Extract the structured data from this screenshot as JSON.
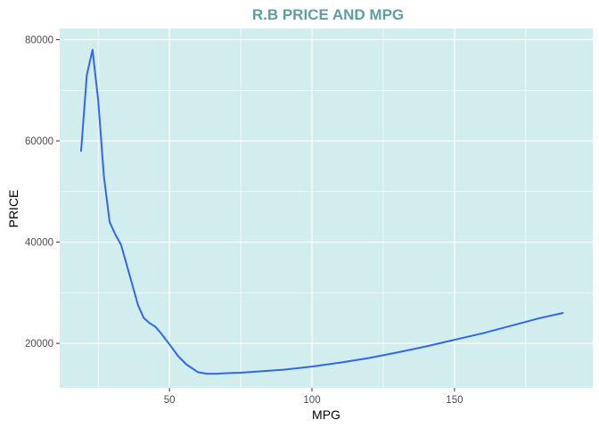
{
  "colors": {
    "panel": "#d1eded",
    "grid": "#ffffff",
    "line": "#3366ee",
    "title": "#5f9ea0",
    "tick_mark": "#333333"
  },
  "chart_data": {
    "type": "line",
    "title": "R.B PRICE AND MPG",
    "xlabel": "MPG",
    "ylabel": "PRICE",
    "xlim": [
      11.5,
      198.5
    ],
    "ylim": [
      11200,
      82200
    ],
    "x_ticks": [
      50,
      100,
      150
    ],
    "x_tick_labels": [
      "50",
      "100",
      "150"
    ],
    "y_ticks": [
      20000,
      40000,
      60000,
      80000
    ],
    "y_tick_labels": [
      "20000",
      "40000",
      "60000",
      "80000"
    ],
    "grid": true,
    "legend": false,
    "series": [
      {
        "x": [
          19,
          21,
          23,
          25,
          27,
          29,
          31,
          33,
          35,
          37,
          39,
          41,
          43,
          45,
          47,
          50,
          53,
          56,
          60,
          63,
          67,
          70,
          75,
          80,
          90,
          100,
          110,
          120,
          130,
          140,
          150,
          160,
          170,
          180,
          188
        ],
        "y": [
          58000,
          73000,
          78000,
          68000,
          53000,
          44000,
          41500,
          39500,
          35500,
          31500,
          27500,
          25000,
          24000,
          23300,
          22000,
          19800,
          17500,
          15800,
          14300,
          14000,
          14000,
          14100,
          14200,
          14400,
          14800,
          15400,
          16200,
          17100,
          18200,
          19400,
          20700,
          22000,
          23500,
          25000,
          26000
        ]
      }
    ]
  }
}
